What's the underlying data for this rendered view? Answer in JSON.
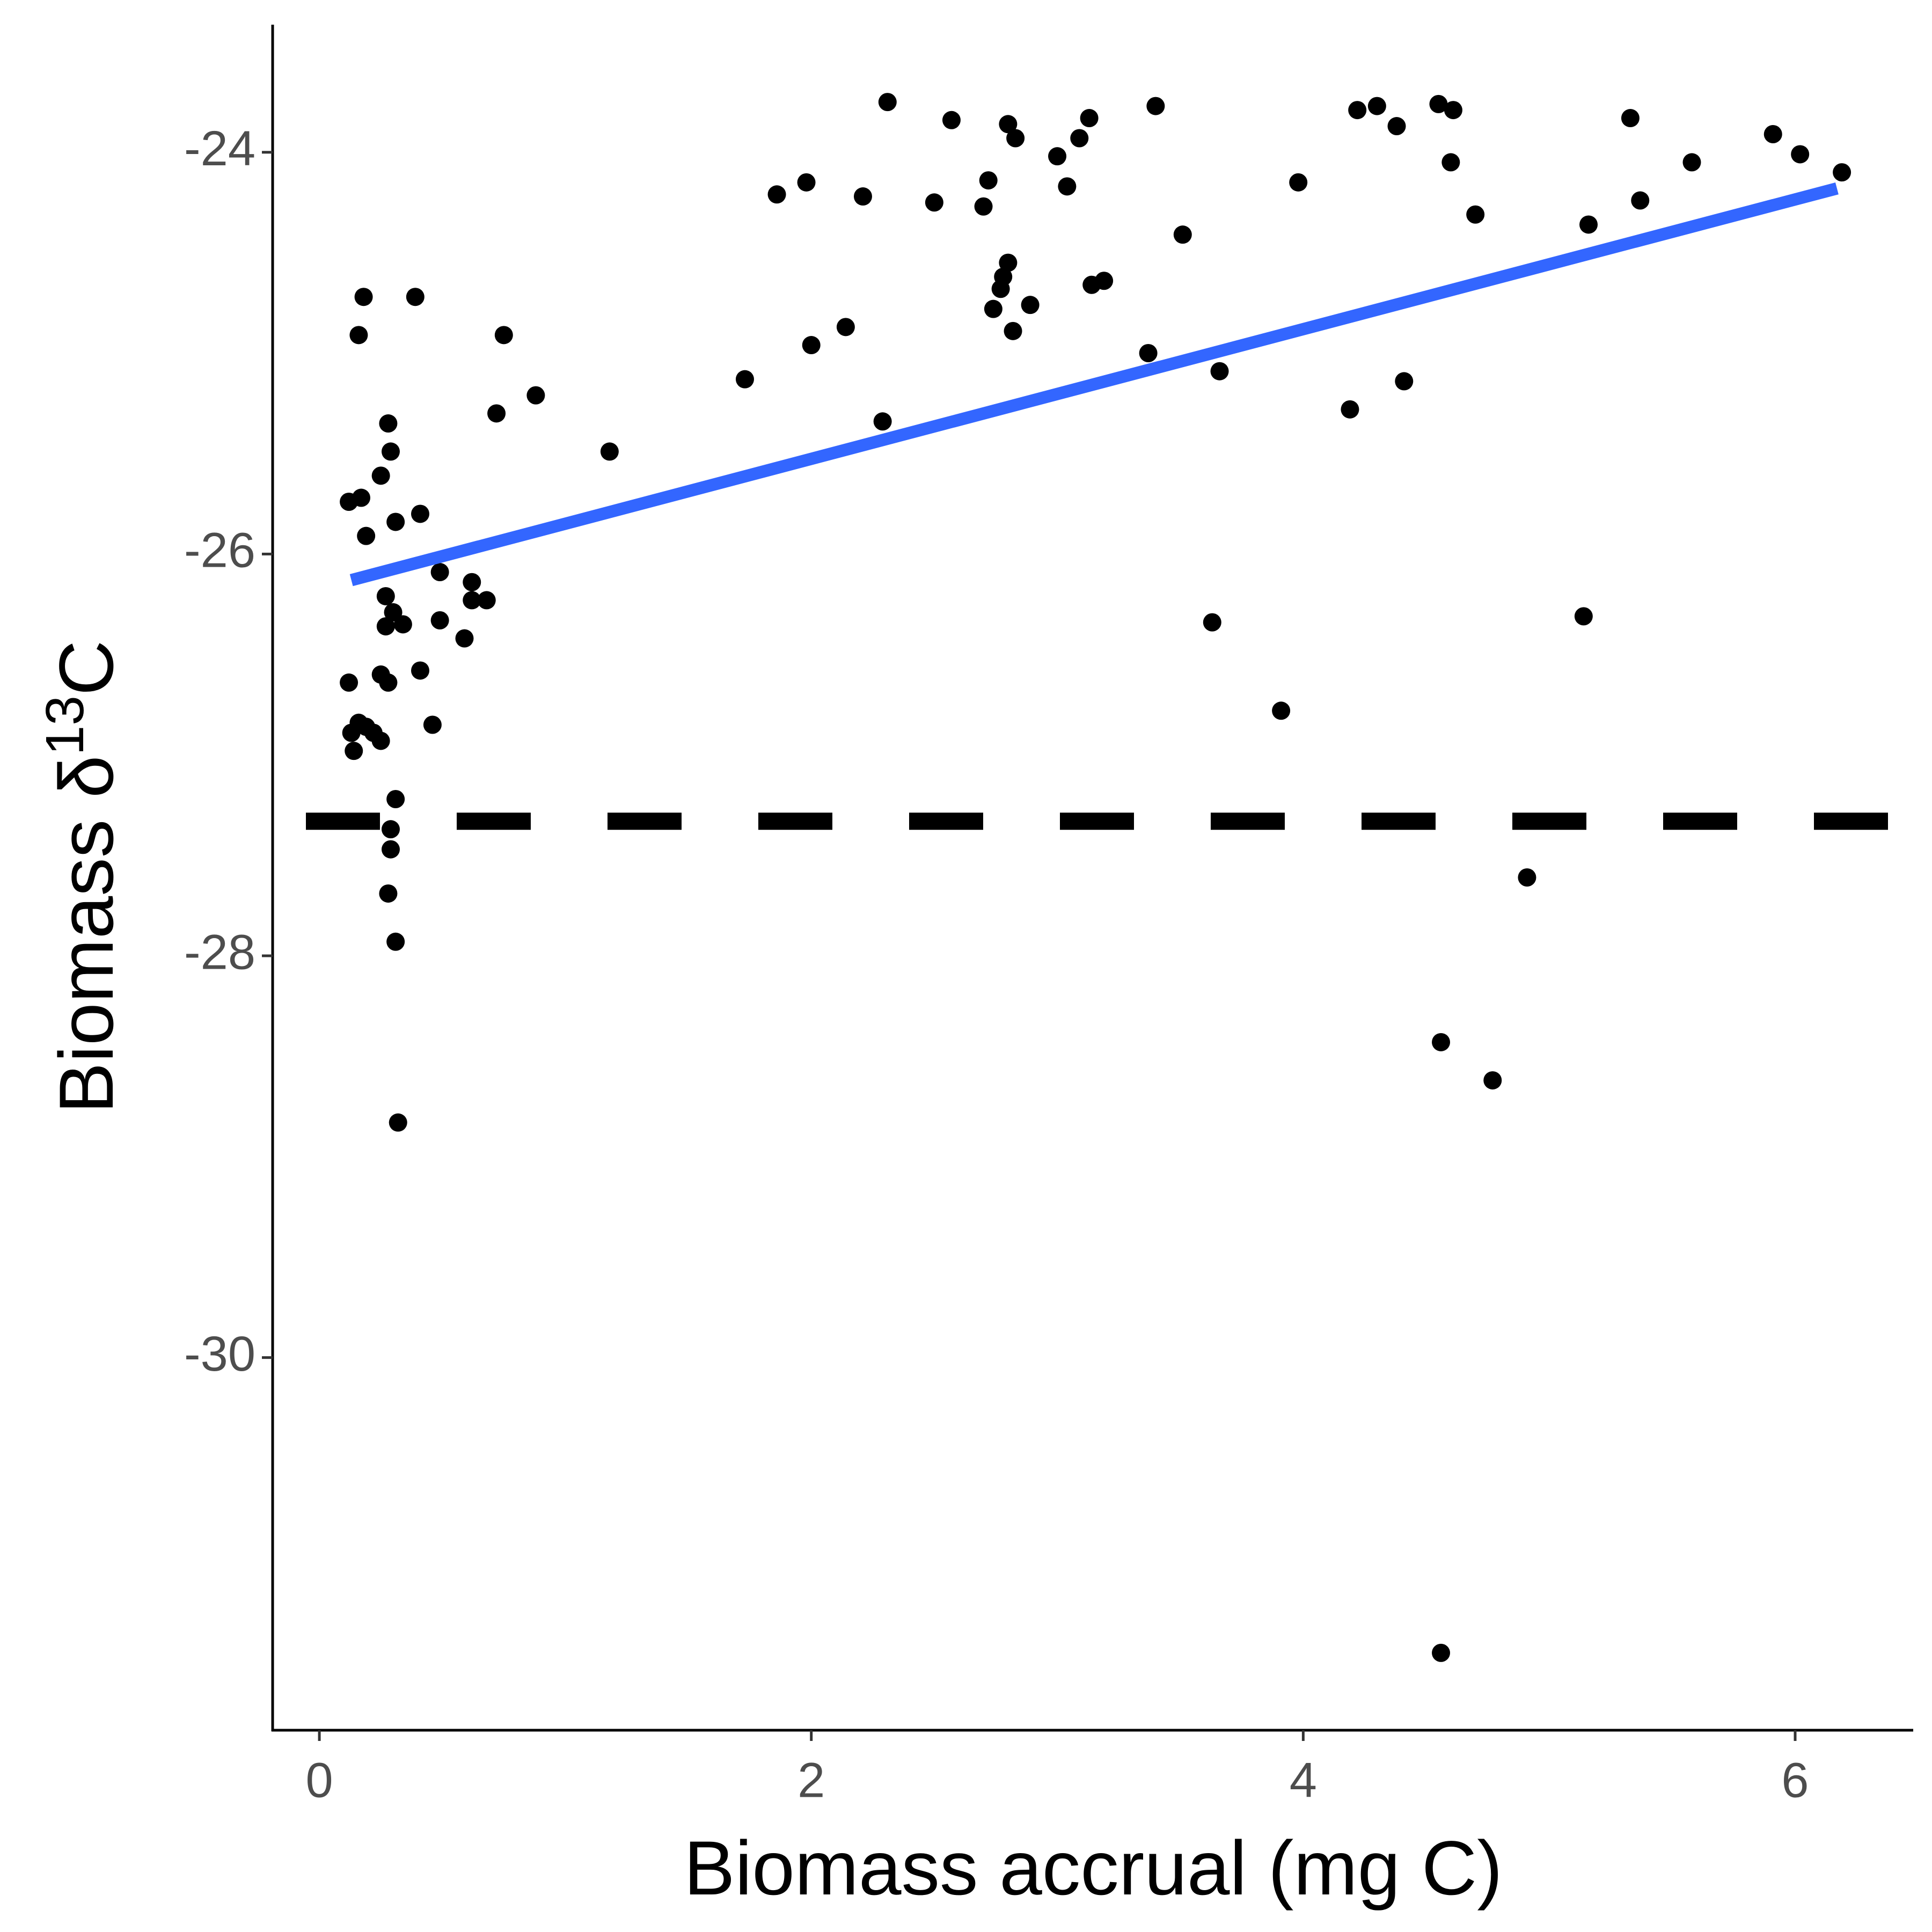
{
  "chart_data": {
    "type": "scatter",
    "xlabel": "Biomass accrual (mg C)",
    "ylabel": "Biomass δ",
    "ylabel_sup": "13",
    "ylabel_end": "C",
    "xlim": [
      -0.19,
      6.48
    ],
    "ylim": [
      -31.855,
      -23.365
    ],
    "xticks": [
      0,
      2,
      4,
      6
    ],
    "yticks": [
      -24,
      -26,
      -28,
      -30
    ],
    "point_color": "#000000",
    "x": [
      0.12,
      0.13,
      0.14,
      0.16,
      0.19,
      0.22,
      0.25,
      0.12,
      0.17,
      0.19,
      0.18,
      0.16,
      0.25,
      0.28,
      0.29,
      0.31,
      0.41,
      0.27,
      0.27,
      0.3,
      0.34,
      0.25,
      0.28,
      0.41,
      0.46,
      0.49,
      0.49,
      0.59,
      0.62,
      0.62,
      0.68,
      0.31,
      0.29,
      0.29,
      0.28,
      0.31,
      0.32,
      0.39,
      0.72,
      0.75,
      0.88,
      1.18,
      1.73,
      1.86,
      1.98,
      2.0,
      2.14,
      2.21,
      2.29,
      2.31,
      2.5,
      2.57,
      2.7,
      2.72,
      2.74,
      2.77,
      2.78,
      2.8,
      2.82,
      2.8,
      2.83,
      2.89,
      3.0,
      3.04,
      3.09,
      3.13,
      3.14,
      3.19,
      3.37,
      3.4,
      3.51,
      3.63,
      3.66,
      3.91,
      3.98,
      4.19,
      4.22,
      4.3,
      4.38,
      4.41,
      4.55,
      4.61,
      4.6,
      4.7,
      4.56,
      4.77,
      4.56,
      4.91,
      5.14,
      5.16,
      5.33,
      5.37,
      5.58,
      5.91,
      6.02,
      6.19
    ],
    "values": [
      -26.64,
      -26.89,
      -26.98,
      -26.84,
      -26.86,
      -26.89,
      -26.93,
      -25.74,
      -25.72,
      -25.91,
      -24.72,
      -24.91,
      -25.61,
      -25.35,
      -25.49,
      -25.84,
      -25.8,
      -26.21,
      -26.36,
      -26.29,
      -26.35,
      -26.6,
      -26.64,
      -26.58,
      -26.85,
      -26.09,
      -26.33,
      -26.42,
      -26.14,
      -26.23,
      -26.23,
      -27.22,
      -27.37,
      -27.47,
      -27.69,
      -27.93,
      -28.83,
      -24.72,
      -25.3,
      -24.91,
      -25.21,
      -25.49,
      -25.13,
      -24.21,
      -24.15,
      -24.96,
      -24.87,
      -24.22,
      -25.34,
      -23.75,
      -24.25,
      -23.84,
      -24.27,
      -24.14,
      -24.78,
      -24.68,
      -24.62,
      -24.55,
      -24.89,
      -23.86,
      -23.93,
      -24.76,
      -24.02,
      -24.17,
      -23.93,
      -23.83,
      -24.66,
      -24.64,
      -25.0,
      -23.77,
      -24.41,
      -26.34,
      -25.09,
      -26.78,
      -24.15,
      -25.28,
      -23.79,
      -23.77,
      -23.87,
      -25.14,
      -23.76,
      -23.79,
      -24.05,
      -24.31,
      -28.43,
      -28.62,
      -31.47,
      -27.61,
      -26.31,
      -24.36,
      -23.83,
      -24.24,
      -24.05,
      -23.91,
      -24.01,
      -24.1
    ],
    "fit": {
      "x": [
        0.13,
        6.17
      ],
      "values": [
        -26.13,
        -24.18
      ],
      "color": "#3366ff"
    },
    "hline": {
      "value": -27.33,
      "color": "#000000"
    }
  }
}
